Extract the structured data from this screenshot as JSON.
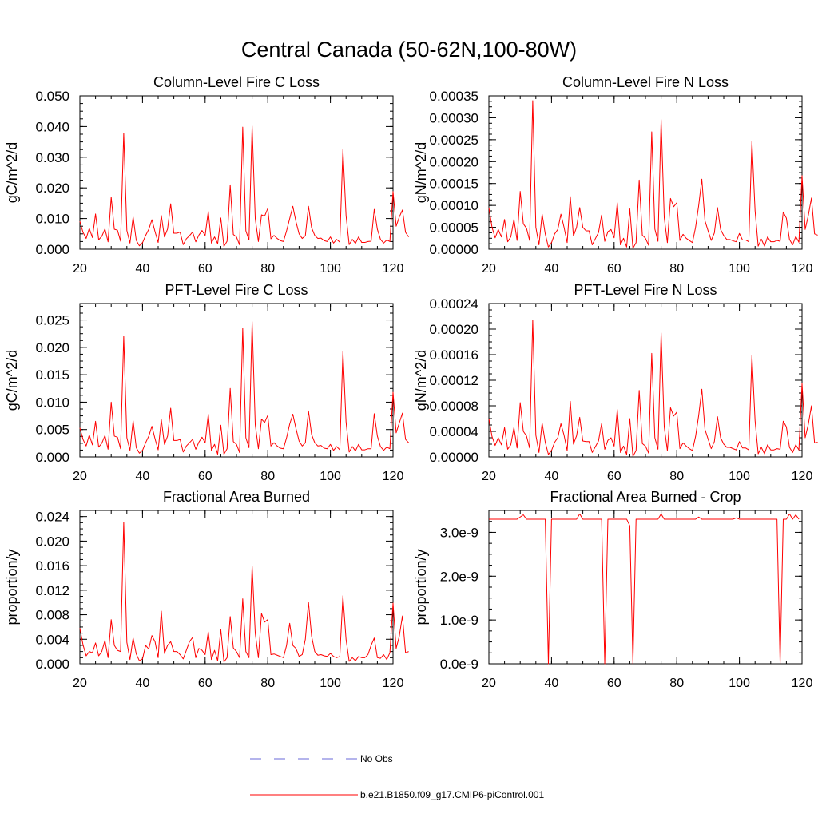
{
  "figure": {
    "title": "Central Canada (50-62N,100-80W)",
    "legend": [
      {
        "label": "No Obs",
        "color": "#6a6ad8",
        "style": "dashed"
      },
      {
        "label": "b.e21.B1850.f09_g17.CMIP6-piControl.001",
        "color": "#ff0000",
        "style": "solid"
      }
    ],
    "series_color": "#ff0000"
  },
  "chart_data": [
    {
      "type": "line",
      "title": "Column-Level Fire C Loss",
      "ylabel": "gC/m^2/d",
      "xlim": [
        20,
        120
      ],
      "xticks": [
        20,
        40,
        60,
        80,
        100,
        120
      ],
      "ylim": [
        0,
        0.05
      ],
      "yticks": [
        0,
        0.01,
        0.02,
        0.03,
        0.04,
        0.05
      ],
      "yticklabels": [
        "0.000",
        "0.010",
        "0.020",
        "0.030",
        "0.040",
        "0.050"
      ],
      "minor_per_major": 4,
      "series": [
        {
          "name": "b.e21.B1850.f09_g17.CMIP6-piControl.001",
          "x_start": 20,
          "values": [
            0.0091,
            0.0055,
            0.0035,
            0.0068,
            0.0038,
            0.0115,
            0.0031,
            0.0042,
            0.0066,
            0.0024,
            0.017,
            0.0065,
            0.0062,
            0.0026,
            0.0378,
            0.0061,
            0.002,
            0.0105,
            0.0029,
            0.0011,
            0.0021,
            0.0045,
            0.0065,
            0.0096,
            0.0057,
            0.0022,
            0.011,
            0.004,
            0.0066,
            0.0148,
            0.0052,
            0.0052,
            0.0056,
            0.0015,
            0.0034,
            0.0044,
            0.0056,
            0.0024,
            0.0046,
            0.0061,
            0.0045,
            0.0123,
            0.002,
            0.004,
            0.0018,
            0.0102,
            0.0009,
            0.0026,
            0.021,
            0.0048,
            0.004,
            0.0014,
            0.0398,
            0.006,
            0.003,
            0.0402,
            0.01,
            0.0025,
            0.0112,
            0.0108,
            0.0133,
            0.0034,
            0.0045,
            0.0035,
            0.0028,
            0.0025,
            0.006,
            0.01,
            0.014,
            0.009,
            0.005,
            0.0035,
            0.0044,
            0.014,
            0.007,
            0.0045,
            0.0035,
            0.0036,
            0.0028,
            0.0025,
            0.004,
            0.002,
            0.0032,
            0.0023,
            0.0325,
            0.011,
            0.0015,
            0.0032,
            0.0019,
            0.004,
            0.0022,
            0.0022,
            0.0025,
            0.0026,
            0.013,
            0.0065,
            0.0032,
            0.002,
            0.003,
            0.0025,
            0.0188,
            0.0075,
            0.0105,
            0.0128,
            0.0055,
            0.004
          ]
        }
      ]
    },
    {
      "type": "line",
      "title": "Column-Level Fire N Loss",
      "ylabel": "gN/m^2/d",
      "xlim": [
        20,
        120
      ],
      "xticks": [
        20,
        40,
        60,
        80,
        100,
        120
      ],
      "ylim": [
        0,
        0.00035
      ],
      "yticks": [
        0,
        5e-05,
        0.0001,
        0.00015,
        0.0002,
        0.00025,
        0.0003,
        0.00035
      ],
      "yticklabels": [
        "0.00000",
        "0.00005",
        "0.00010",
        "0.00015",
        "0.00020",
        "0.00025",
        "0.00030",
        "0.00035"
      ],
      "minor_per_major": 4,
      "series": [
        {
          "name": "b.e21.B1850.f09_g17.CMIP6-piControl.001",
          "x_start": 20,
          "values": [
            9.5e-05,
            5e-05,
            2.6e-05,
            4.5e-05,
            2.8e-05,
            6.8e-05,
            1.7e-05,
            2.8e-05,
            6.8e-05,
            2e-05,
            0.000132,
            5.8e-05,
            4.8e-05,
            2e-05,
            0.000339,
            5e-05,
            1e-05,
            8e-05,
            3.5e-05,
            5e-06,
            1.5e-05,
            3.5e-05,
            4.5e-05,
            8e-05,
            5e-05,
            1.5e-05,
            0.00012,
            3e-05,
            5e-05,
            9.5e-05,
            5e-05,
            4.2e-05,
            4.2e-05,
            1e-05,
            2.4e-05,
            3.8e-05,
            7.8e-05,
            1.8e-05,
            4e-05,
            4.5e-05,
            2.6e-05,
            0.000106,
            1e-05,
            2.5e-05,
            5e-06,
            9.2e-05,
            2e-06,
            1.5e-05,
            0.000158,
            3.2e-05,
            2.5e-05,
            9e-06,
            0.000268,
            4.6e-05,
            1.8e-05,
            0.000296,
            7.2e-05,
            1.5e-05,
            0.000116,
            9.7e-05,
            0.000106,
            2e-05,
            3.4e-05,
            2.5e-05,
            2e-05,
            1.5e-05,
            5e-05,
            0.0001,
            0.00016,
            6.5e-05,
            4.2e-05,
            2e-05,
            3.7e-05,
            9.5e-05,
            4.5e-05,
            3.1e-05,
            2.2e-05,
            2.2e-05,
            1.9e-05,
            1.7e-05,
            3.6e-05,
            2.1e-05,
            2.1e-05,
            1.7e-05,
            0.000247,
            8.8e-05,
            7e-06,
            2.3e-05,
            7e-06,
            2.8e-05,
            1.7e-05,
            1.7e-05,
            2e-05,
            1.8e-05,
            8.5e-05,
            7.1e-05,
            2.2e-05,
            1e-05,
            2.9e-05,
            1.6e-05,
            0.000168,
            4.5e-05,
            7.7e-05,
            0.000117,
            3.5e-05,
            3.2e-05
          ]
        }
      ]
    },
    {
      "type": "line",
      "title": "PFT-Level Fire C Loss",
      "ylabel": "gC/m^2/d",
      "xlim": [
        20,
        120
      ],
      "xticks": [
        20,
        40,
        60,
        80,
        100,
        120
      ],
      "ylim": [
        0,
        0.028
      ],
      "yticks": [
        0,
        0.005,
        0.01,
        0.015,
        0.02,
        0.025
      ],
      "yticklabels": [
        "0.000",
        "0.005",
        "0.010",
        "0.015",
        "0.020",
        "0.025"
      ],
      "minor_per_major": 4,
      "series": [
        {
          "name": "b.e21.B1850.f09_g17.CMIP6-piControl.001",
          "x_start": 20,
          "values": [
            0.0053,
            0.0032,
            0.002,
            0.004,
            0.0022,
            0.0065,
            0.0018,
            0.0025,
            0.0039,
            0.0014,
            0.01,
            0.0038,
            0.0036,
            0.0015,
            0.022,
            0.0035,
            0.0012,
            0.0066,
            0.0017,
            0.0007,
            0.0012,
            0.0026,
            0.0038,
            0.0056,
            0.0033,
            0.0013,
            0.0068,
            0.0023,
            0.0038,
            0.0089,
            0.003,
            0.003,
            0.0032,
            0.0009,
            0.002,
            0.0026,
            0.0032,
            0.0014,
            0.0027,
            0.0036,
            0.0026,
            0.0078,
            0.0012,
            0.0023,
            0.0005,
            0.0058,
            0.0005,
            0.0015,
            0.0125,
            0.0028,
            0.0023,
            0.0008,
            0.0235,
            0.0035,
            0.0017,
            0.0247,
            0.0059,
            0.0015,
            0.0069,
            0.0063,
            0.0076,
            0.002,
            0.0026,
            0.002,
            0.0016,
            0.0015,
            0.0035,
            0.006,
            0.0078,
            0.0052,
            0.0029,
            0.002,
            0.0026,
            0.0084,
            0.0041,
            0.0026,
            0.002,
            0.0021,
            0.0016,
            0.0015,
            0.0023,
            0.0012,
            0.0019,
            0.0013,
            0.0193,
            0.0064,
            0.0009,
            0.0019,
            0.0011,
            0.0023,
            0.0013,
            0.0013,
            0.0015,
            0.0015,
            0.0079,
            0.0038,
            0.0019,
            0.0012,
            0.0018,
            0.0015,
            0.0118,
            0.0044,
            0.0062,
            0.008,
            0.0032,
            0.0026
          ]
        }
      ]
    },
    {
      "type": "line",
      "title": "PFT-Level Fire N Loss",
      "ylabel": "gN/m^2/d",
      "xlim": [
        20,
        120
      ],
      "xticks": [
        20,
        40,
        60,
        80,
        100,
        120
      ],
      "ylim": [
        0,
        0.00024
      ],
      "yticks": [
        0,
        4e-05,
        8e-05,
        0.00012,
        0.00016,
        0.0002,
        0.00024
      ],
      "yticklabels": [
        "0.00000",
        "0.00004",
        "0.00008",
        "0.00012",
        "0.00016",
        "0.00020",
        "0.00024"
      ],
      "minor_per_major": 4,
      "series": [
        {
          "name": "b.e21.B1850.f09_g17.CMIP6-piControl.001",
          "x_start": 20,
          "values": [
            6e-05,
            3.2e-05,
            1.8e-05,
            3e-05,
            1.9e-05,
            4.6e-05,
            1.2e-05,
            1.9e-05,
            4.6e-05,
            1.4e-05,
            8.5e-05,
            4e-05,
            3.3e-05,
            1.4e-05,
            0.000214,
            3.4e-05,
            7e-06,
            5.3e-05,
            2.3e-05,
            4e-06,
            1e-05,
            2.3e-05,
            3e-05,
            5.2e-05,
            3.4e-05,
            1e-05,
            8.7e-05,
            2e-05,
            3.3e-05,
            6.2e-05,
            2.5e-05,
            2.4e-05,
            2.4e-05,
            7e-06,
            1.6e-05,
            2.5e-05,
            5.2e-05,
            1.2e-05,
            2.6e-05,
            3e-05,
            1.7e-05,
            7.4e-05,
            7e-06,
            1.7e-05,
            4e-06,
            6e-05,
            1e-06,
            1e-05,
            0.000104,
            2.1e-05,
            1.7e-05,
            6e-06,
            0.000162,
            3e-05,
            1.2e-05,
            0.000194,
            4.7e-05,
            1e-05,
            7.7e-05,
            6.4e-05,
            7e-05,
            1.3e-05,
            2.2e-05,
            1.7e-05,
            1.3e-05,
            1e-05,
            3.2e-05,
            6.5e-05,
            0.000106,
            4.3e-05,
            2.8e-05,
            1.3e-05,
            2.4e-05,
            6.3e-05,
            3e-05,
            2e-05,
            1.5e-05,
            1.5e-05,
            1.3e-05,
            1.1e-05,
            2.4e-05,
            1.4e-05,
            1.4e-05,
            1.1e-05,
            0.000159,
            5.7e-05,
            5e-06,
            1.5e-05,
            5e-06,
            1.9e-05,
            1.1e-05,
            1.1e-05,
            1.3e-05,
            1.2e-05,
            5.6e-05,
            4.7e-05,
            1.5e-05,
            7e-06,
            1.9e-05,
            1.1e-05,
            0.000115,
            3e-05,
            5.1e-05,
            8e-05,
            2.2e-05,
            2.3e-05
          ]
        }
      ]
    },
    {
      "type": "line",
      "title": "Fractional Area Burned",
      "ylabel": "proportion/y",
      "xlim": [
        20,
        120
      ],
      "xticks": [
        20,
        40,
        60,
        80,
        100,
        120
      ],
      "ylim": [
        0,
        0.025
      ],
      "yticks": [
        0,
        0.004,
        0.008,
        0.012,
        0.016,
        0.02,
        0.024
      ],
      "yticklabels": [
        "0.000",
        "0.004",
        "0.008",
        "0.012",
        "0.016",
        "0.020",
        "0.024"
      ],
      "minor_per_major": 4,
      "series": [
        {
          "name": "b.e21.B1850.f09_g17.CMIP6-piControl.001",
          "x_start": 20,
          "values": [
            0.0058,
            0.0031,
            0.0013,
            0.002,
            0.0018,
            0.0034,
            0.0013,
            0.002,
            0.0038,
            0.001,
            0.0072,
            0.003,
            0.0022,
            0.002,
            0.0231,
            0.0035,
            0.0007,
            0.0042,
            0.0016,
            0.0005,
            0.0008,
            0.003,
            0.0024,
            0.0046,
            0.0036,
            0.001,
            0.0086,
            0.0017,
            0.003,
            0.0036,
            0.002,
            0.002,
            0.0015,
            0.0008,
            0.0022,
            0.0036,
            0.0043,
            0.001,
            0.0025,
            0.0022,
            0.0015,
            0.0052,
            0.0007,
            0.0022,
            0.0005,
            0.0056,
            0.0003,
            0.001,
            0.0077,
            0.0026,
            0.002,
            0.001,
            0.0106,
            0.002,
            0.001,
            0.016,
            0.005,
            0.001,
            0.0082,
            0.0068,
            0.0072,
            0.0015,
            0.0016,
            0.0014,
            0.0012,
            0.001,
            0.003,
            0.0066,
            0.003,
            0.0025,
            0.0012,
            0.0015,
            0.004,
            0.01,
            0.0045,
            0.002,
            0.0014,
            0.0015,
            0.0013,
            0.0012,
            0.0017,
            0.0012,
            0.001,
            0.0012,
            0.0111,
            0.004,
            0.0004,
            0.001,
            0.0005,
            0.0012,
            0.001,
            0.001,
            0.0015,
            0.003,
            0.0042,
            0.001,
            0.0009,
            0.0015,
            0.0007,
            0.0018,
            0.0099,
            0.0025,
            0.0045,
            0.0078,
            0.0018,
            0.002
          ]
        }
      ]
    },
    {
      "type": "line",
      "title": "Fractional Area Burned - Crop",
      "ylabel": "proportion/y",
      "xlim": [
        20,
        120
      ],
      "xticks": [
        20,
        40,
        60,
        80,
        100,
        120
      ],
      "ylim": [
        0,
        3.5e-09
      ],
      "yticks": [
        0,
        1e-09,
        2e-09,
        3e-09
      ],
      "yticklabels": [
        "0.0e-9",
        "1.0e-9",
        "2.0e-9",
        "3.0e-9"
      ],
      "minor_per_major": 4,
      "series": [
        {
          "name": "b.e21.B1850.f09_g17.CMIP6-piControl.001",
          "x_start": 20,
          "values": [
            3.3e-09,
            3.3e-09,
            3.3e-09,
            3.3e-09,
            3.3e-09,
            3.3e-09,
            3.3e-09,
            3.3e-09,
            3.3e-09,
            3.3e-09,
            3.35e-09,
            3.4e-09,
            3.3e-09,
            3.3e-09,
            3.3e-09,
            3.3e-09,
            3.3e-09,
            3.3e-09,
            3.3e-09,
            0,
            3.3e-09,
            3.3e-09,
            3.3e-09,
            3.3e-09,
            3.3e-09,
            3.3e-09,
            3.3e-09,
            3.3e-09,
            3.3e-09,
            3.42e-09,
            3.3e-09,
            3.3e-09,
            3.3e-09,
            3.3e-09,
            3.3e-09,
            3.3e-09,
            3.3e-09,
            0,
            3.3e-09,
            3.3e-09,
            3.3e-09,
            3.3e-09,
            3.3e-09,
            3.3e-09,
            3.3e-09,
            3.15e-09,
            0,
            3.3e-09,
            3.3e-09,
            3.3e-09,
            3.3e-09,
            3.3e-09,
            3.3e-09,
            3.3e-09,
            3.3e-09,
            3.42e-09,
            3.3e-09,
            3.3e-09,
            3.3e-09,
            3.3e-09,
            3.3e-09,
            3.3e-09,
            3.3e-09,
            3.3e-09,
            3.3e-09,
            3.3e-09,
            3.3e-09,
            3.35e-09,
            3.3e-09,
            3.3e-09,
            3.3e-09,
            3.3e-09,
            3.3e-09,
            3.3e-09,
            3.3e-09,
            3.3e-09,
            3.3e-09,
            3.3e-09,
            3.3e-09,
            3.33e-09,
            3.3e-09,
            3.3e-09,
            3.3e-09,
            3.3e-09,
            3.3e-09,
            3.3e-09,
            3.3e-09,
            3.3e-09,
            3.3e-09,
            3.3e-09,
            3.3e-09,
            3.3e-09,
            3.3e-09,
            0,
            3.3e-09,
            3.3e-09,
            3.42e-09,
            3.3e-09,
            3.4e-09,
            3.3e-09
          ]
        }
      ]
    }
  ]
}
